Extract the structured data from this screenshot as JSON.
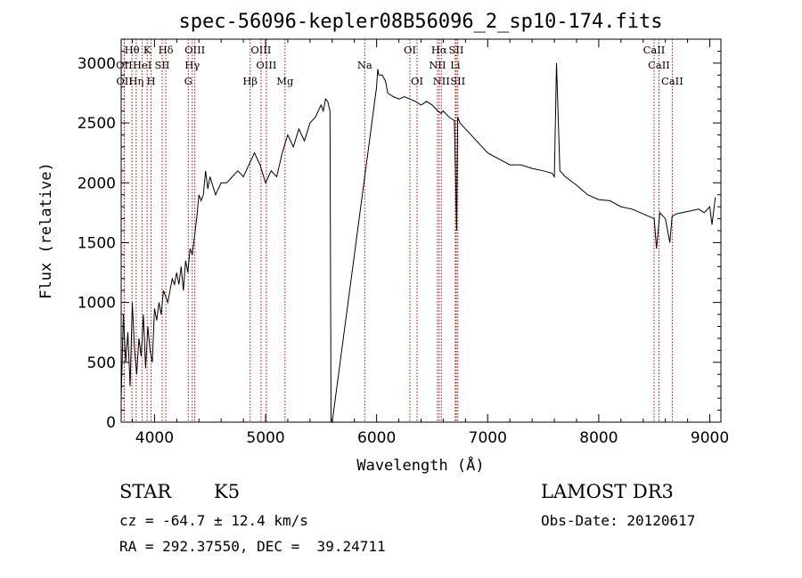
{
  "chart_data": {
    "type": "line",
    "title": "spec-56096-kepler08B56096_2_sp10-174.fits",
    "xlabel": "Wavelength (Å)",
    "ylabel": "Flux (relative)",
    "xlim": [
      3700,
      9100
    ],
    "ylim": [
      0,
      3200
    ],
    "xticks": [
      4000,
      5000,
      6000,
      7000,
      8000,
      9000
    ],
    "yticks": [
      0,
      500,
      1000,
      1500,
      2000,
      2500,
      3000
    ],
    "grid": false,
    "series": [
      {
        "x": [
          3700,
          3720,
          3740,
          3760,
          3780,
          3800,
          3820,
          3840,
          3860,
          3880,
          3900,
          3920,
          3940,
          3960,
          3980,
          4000,
          4020,
          4040,
          4060,
          4080,
          4100,
          4120,
          4140,
          4160,
          4180,
          4200,
          4220,
          4240,
          4260,
          4280,
          4300,
          4320,
          4340,
          4360,
          4380,
          4400,
          4420,
          4440,
          4460,
          4480,
          4500,
          4550,
          4600,
          4650,
          4700,
          4750,
          4800,
          4850,
          4900,
          4950,
          5000,
          5050,
          5100,
          5150,
          5200,
          5250,
          5300,
          5350,
          5400,
          5450,
          5500,
          5520,
          5540,
          5560,
          5580,
          5590,
          5600,
          6000,
          6010,
          6020,
          6050,
          6080,
          6100,
          6150,
          6200,
          6250,
          6300,
          6350,
          6400,
          6450,
          6500,
          6550,
          6580,
          6600,
          6650,
          6700,
          6720,
          6730,
          6750,
          6800,
          6900,
          7000,
          7100,
          7200,
          7300,
          7400,
          7500,
          7580,
          7600,
          7620,
          7650,
          7700,
          7800,
          7900,
          8000,
          8100,
          8200,
          8300,
          8400,
          8450,
          8500,
          8520,
          8550,
          8600,
          8640,
          8660,
          8700,
          8800,
          8900,
          8950,
          9000,
          9020,
          9050
        ],
        "values": [
          200,
          900,
          500,
          750,
          300,
          1000,
          600,
          400,
          700,
          550,
          900,
          450,
          800,
          600,
          500,
          950,
          850,
          1000,
          900,
          1100,
          1050,
          1000,
          1100,
          1200,
          1150,
          1250,
          1150,
          1300,
          1100,
          1350,
          1250,
          1450,
          1400,
          1550,
          1700,
          1900,
          1850,
          1900,
          2100,
          1950,
          2050,
          1900,
          2000,
          2000,
          2050,
          2100,
          2050,
          2150,
          2250,
          2150,
          2000,
          2100,
          2050,
          2250,
          2400,
          2300,
          2450,
          2350,
          2500,
          2550,
          2650,
          2600,
          2700,
          2680,
          2600,
          10,
          0,
          2800,
          2950,
          2900,
          2900,
          2850,
          2750,
          2720,
          2700,
          2720,
          2700,
          2680,
          2650,
          2680,
          2650,
          2600,
          2580,
          2600,
          2550,
          2520,
          1600,
          2550,
          2500,
          2450,
          2350,
          2250,
          2200,
          2150,
          2150,
          2120,
          2100,
          2080,
          2050,
          3000,
          2100,
          2050,
          1980,
          1900,
          1860,
          1850,
          1800,
          1780,
          1740,
          1720,
          1700,
          1450,
          1750,
          1700,
          1500,
          1720,
          1740,
          1760,
          1780,
          1750,
          1800,
          1650,
          1880
        ]
      }
    ],
    "line_labels": [
      {
        "label": "Hθ",
        "x": 3797,
        "row": 0
      },
      {
        "label": "K",
        "x": 3934,
        "row": 0
      },
      {
        "label": "Hδ",
        "x": 4102,
        "row": 0
      },
      {
        "label": "OIII",
        "x": 4363,
        "row": 0
      },
      {
        "label": "OIII",
        "x": 4959,
        "row": 0
      },
      {
        "label": "Na",
        "x": 5893,
        "row": 1
      },
      {
        "label": "OI",
        "x": 6300,
        "row": 0
      },
      {
        "label": "Hα",
        "x": 6563,
        "row": 0
      },
      {
        "label": "SII",
        "x": 6717,
        "row": 0
      },
      {
        "label": "CaII",
        "x": 8498,
        "row": 0
      },
      {
        "label": "OII",
        "x": 3727,
        "row": 1
      },
      {
        "label": "HeI",
        "x": 3889,
        "row": 1
      },
      {
        "label": "SII",
        "x": 4069,
        "row": 1
      },
      {
        "label": "Hγ",
        "x": 4340,
        "row": 1
      },
      {
        "label": "OIII",
        "x": 5007,
        "row": 1
      },
      {
        "label": "NII",
        "x": 6548,
        "row": 1
      },
      {
        "label": "Li",
        "x": 6708,
        "row": 1
      },
      {
        "label": "CaII",
        "x": 8542,
        "row": 1
      },
      {
        "label": "OII",
        "x": 3729,
        "row": 2
      },
      {
        "label": "Hη",
        "x": 3835,
        "row": 2
      },
      {
        "label": "H",
        "x": 3969,
        "row": 2
      },
      {
        "label": "G",
        "x": 4304,
        "row": 2
      },
      {
        "label": "Hβ",
        "x": 4861,
        "row": 2
      },
      {
        "label": "Mg",
        "x": 5175,
        "row": 2
      },
      {
        "label": "OI",
        "x": 6364,
        "row": 2
      },
      {
        "label": "NII",
        "x": 6583,
        "row": 2
      },
      {
        "label": "SII",
        "x": 6731,
        "row": 2
      },
      {
        "label": "CaII",
        "x": 8662,
        "row": 2
      }
    ]
  },
  "info": {
    "object_class": "STAR",
    "subclass": "K5",
    "survey": "LAMOST DR3",
    "redshift": "cz = -64.7 ± 12.4 km/s",
    "obs_date": "Obs-Date: 20120617",
    "coords": "RA = 292.37550, DEC =  39.24711"
  }
}
